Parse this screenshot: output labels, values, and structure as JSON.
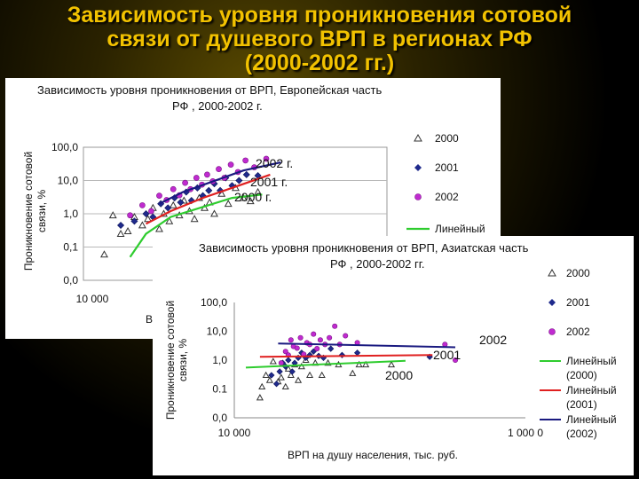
{
  "slide": {
    "title_lines": [
      "Зависимость уровня проникновения сотовой",
      "связи от душевого ВРП в регионах РФ",
      "(2000-2002 гг.)"
    ],
    "colors": {
      "title": "#f2c200",
      "background": "#000000"
    }
  },
  "chart_data": [
    {
      "type": "scatter",
      "title": "Зависимость уровня проникновения от ВРП, Европейская часть РФ , 2000-2002 г.",
      "title_lines": [
        "Зависимость уровня проникновения от ВРП, Европейская часть",
        "РФ , 2000-2002 г."
      ],
      "ylabel": "Проникновение сотовой связи, %",
      "ylabel_lines": [
        "Проникновение сотовой",
        "связи, %"
      ],
      "xlabel": "ВРП на душу населения, тыс. руб.",
      "xlabel_visible": "ВІ",
      "x_scale": "log",
      "y_scale": "log",
      "xlim": [
        10000,
        1000000
      ],
      "ylim": [
        0.01,
        100
      ],
      "x_tick_labels": [
        "10 000"
      ],
      "y_ticks": [
        0.01,
        0.1,
        1,
        10,
        100
      ],
      "y_tick_labels": [
        "0,0",
        "0,1",
        "1,0",
        "10,0",
        "100,0"
      ],
      "grid": true,
      "legend_placement": "right",
      "legend": [
        {
          "label": "2000",
          "marker": "triangle-open"
        },
        {
          "label": "2001",
          "marker": "diamond",
          "color": "#1f2a8c"
        },
        {
          "label": "2002",
          "marker": "circle",
          "color": "#c02ad0"
        },
        {
          "label": "Линейный",
          "marker": "line",
          "color": "#2ecc2e"
        }
      ],
      "annotations": [
        "2002 г.",
        "2001 г.",
        "2000 г."
      ],
      "series": [
        {
          "name": "2000",
          "points": [
            [
              13000,
              0.06
            ],
            [
              14500,
              0.9
            ],
            [
              16000,
              0.25
            ],
            [
              17500,
              0.3
            ],
            [
              19000,
              0.8
            ],
            [
              21000,
              0.45
            ],
            [
              22500,
              0.7
            ],
            [
              24000,
              1.5
            ],
            [
              26000,
              0.35
            ],
            [
              27500,
              1.0
            ],
            [
              29500,
              0.6
            ],
            [
              31000,
              1.8
            ],
            [
              33500,
              0.9
            ],
            [
              35500,
              2.5
            ],
            [
              38000,
              1.2
            ],
            [
              40500,
              0.7
            ],
            [
              43000,
              3.0
            ],
            [
              46000,
              1.5
            ],
            [
              49000,
              2.2
            ],
            [
              52000,
              1.0
            ],
            [
              57000,
              4.0
            ],
            [
              62000,
              2.0
            ],
            [
              68000,
              6.0
            ],
            [
              75000,
              3.0
            ],
            [
              82000,
              2.4
            ],
            [
              90000,
              4.5
            ]
          ]
        },
        {
          "name": "2001",
          "points": [
            [
              16000,
              0.45
            ],
            [
              19000,
              0.6
            ],
            [
              22000,
              1.0
            ],
            [
              24000,
              0.8
            ],
            [
              26500,
              2.0
            ],
            [
              29000,
              1.5
            ],
            [
              31500,
              3.0
            ],
            [
              34000,
              2.2
            ],
            [
              36500,
              4.5
            ],
            [
              39000,
              2.5
            ],
            [
              42000,
              6.0
            ],
            [
              45000,
              3.5
            ],
            [
              48500,
              5.0
            ],
            [
              52000,
              8.0
            ],
            [
              56000,
              5.0
            ],
            [
              60000,
              12.0
            ],
            [
              65000,
              7.0
            ],
            [
              71000,
              10.0
            ],
            [
              78000,
              15.0
            ],
            [
              90000,
              14.0
            ]
          ]
        },
        {
          "name": "2002",
          "points": [
            [
              18000,
              0.9
            ],
            [
              21000,
              1.8
            ],
            [
              23500,
              1.2
            ],
            [
              26000,
              3.5
            ],
            [
              28500,
              2.6
            ],
            [
              31000,
              5.5
            ],
            [
              33500,
              3.6
            ],
            [
              36000,
              8.5
            ],
            [
              38500,
              5.5
            ],
            [
              41500,
              12.0
            ],
            [
              44500,
              7.5
            ],
            [
              47500,
              15.0
            ],
            [
              51000,
              9.5
            ],
            [
              55000,
              22.0
            ],
            [
              59000,
              12.0
            ],
            [
              64000,
              30.0
            ],
            [
              70000,
              18.0
            ],
            [
              77000,
              40.0
            ],
            [
              86000,
              25.0
            ],
            [
              100000,
              45.0
            ]
          ]
        }
      ],
      "trendlines": [
        {
          "name": "2000",
          "color": "#2ecc2e",
          "points": [
            [
              18000,
              0.05
            ],
            [
              22000,
              0.25
            ],
            [
              30000,
              0.8
            ],
            [
              45000,
              1.6
            ],
            [
              65000,
              3.0
            ],
            [
              95000,
              3.8
            ]
          ]
        },
        {
          "name": "2001",
          "color": "#e02020",
          "points": [
            [
              22000,
              0.5
            ],
            [
              30000,
              1.2
            ],
            [
              45000,
              3.0
            ],
            [
              65000,
              6.0
            ],
            [
              105000,
              15.0
            ]
          ]
        },
        {
          "name": "2002",
          "color": "#1a1a80",
          "points": [
            [
              26000,
              2.0
            ],
            [
              35000,
              4.5
            ],
            [
              50000,
              9.0
            ],
            [
              75000,
              20.0
            ],
            [
              120000,
              35.0
            ]
          ]
        }
      ]
    },
    {
      "type": "scatter",
      "title": "Зависимость уровня проникновения от ВРП, Азиатская часть РФ , 2000-2002 гг.",
      "title_lines": [
        "Зависимость уровня проникновения от ВРП, Азиатская часть",
        "РФ , 2000-2002 гг."
      ],
      "ylabel": "Проникновение сотовой связи, %",
      "ylabel_lines": [
        "Проникновение сотовой",
        "связи, %"
      ],
      "xlabel": "ВРП на душу населения, тыс. руб.",
      "x_scale": "log",
      "y_scale": "log",
      "xlim": [
        10000,
        1000000
      ],
      "ylim": [
        0.01,
        100
      ],
      "x_ticks": [
        10000,
        1000000
      ],
      "x_tick_labels": [
        "10 000",
        "1 000 0"
      ],
      "y_ticks": [
        0.01,
        0.1,
        1,
        10,
        100
      ],
      "y_tick_labels": [
        "0,0",
        "0.1",
        "1,0",
        "10,0",
        "100,0"
      ],
      "grid": false,
      "legend_placement": "right",
      "legend": [
        {
          "label": "2000",
          "marker": "triangle-open"
        },
        {
          "label": "2001",
          "marker": "diamond",
          "color": "#1f2a8c"
        },
        {
          "label": "2002",
          "marker": "circle",
          "color": "#c02ad0"
        },
        {
          "label": "Линейный (2000)",
          "lines": [
            "Линейный",
            "(2000)"
          ],
          "marker": "line",
          "color": "#2ecc2e"
        },
        {
          "label": "Линейный (2001)",
          "lines": [
            "Линейный",
            "(2001)"
          ],
          "marker": "line",
          "color": "#e02020"
        },
        {
          "label": "Линейный (2002)",
          "lines": [
            "Линейный",
            "(2002)"
          ],
          "marker": "line",
          "color": "#1a1a80"
        }
      ],
      "annotations": [
        "2002",
        "2001",
        "2000"
      ],
      "series": [
        {
          "name": "2000",
          "points": [
            [
              15000,
              0.05
            ],
            [
              15500,
              0.12
            ],
            [
              16500,
              0.3
            ],
            [
              17500,
              0.2
            ],
            [
              18500,
              0.9
            ],
            [
              20000,
              0.18
            ],
            [
              21000,
              0.25
            ],
            [
              22500,
              0.12
            ],
            [
              23500,
              0.5
            ],
            [
              24500,
              0.3
            ],
            [
              26000,
              0.7
            ],
            [
              27500,
              0.2
            ],
            [
              29000,
              0.6
            ],
            [
              31000,
              1.0
            ],
            [
              33000,
              0.3
            ],
            [
              36000,
              0.8
            ],
            [
              40000,
              0.3
            ],
            [
              44000,
              0.8
            ],
            [
              52000,
              0.7
            ],
            [
              65000,
              0.35
            ],
            [
              72000,
              0.7
            ],
            [
              80000,
              0.7
            ],
            [
              120000,
              0.7
            ]
          ]
        },
        {
          "name": "2001",
          "points": [
            [
              18000,
              0.3
            ],
            [
              19500,
              0.15
            ],
            [
              20500,
              0.4
            ],
            [
              21500,
              0.8
            ],
            [
              22500,
              0.6
            ],
            [
              23500,
              1.0
            ],
            [
              25000,
              0.4
            ],
            [
              26000,
              0.8
            ],
            [
              27500,
              1.2
            ],
            [
              29000,
              1.8
            ],
            [
              31000,
              1.2
            ],
            [
              33000,
              1.5
            ],
            [
              35000,
              2.0
            ],
            [
              38000,
              1.4
            ],
            [
              41000,
              1.2
            ],
            [
              46000,
              2.5
            ],
            [
              55000,
              1.5
            ],
            [
              70000,
              1.8
            ],
            [
              220000,
              1.3
            ]
          ]
        },
        {
          "name": "2002",
          "points": [
            [
              21000,
              0.8
            ],
            [
              22500,
              2.0
            ],
            [
              23500,
              1.5
            ],
            [
              24500,
              5.0
            ],
            [
              25500,
              3.0
            ],
            [
              27000,
              2.6
            ],
            [
              28500,
              6.0
            ],
            [
              30000,
              1.6
            ],
            [
              31500,
              4.0
            ],
            [
              33000,
              3.5
            ],
            [
              35000,
              8.0
            ],
            [
              37000,
              2.5
            ],
            [
              39000,
              5.0
            ],
            [
              42000,
              3.5
            ],
            [
              45000,
              6.0
            ],
            [
              49000,
              15.0
            ],
            [
              53000,
              3.5
            ],
            [
              58000,
              7.0
            ],
            [
              70000,
              4.0
            ],
            [
              280000,
              3.5
            ],
            [
              330000,
              1.0
            ]
          ]
        }
      ],
      "trendlines": [
        {
          "name": "2000",
          "color": "#2ecc2e",
          "points": [
            [
              12000,
              0.55
            ],
            [
              150000,
              0.95
            ]
          ]
        },
        {
          "name": "2001",
          "color": "#e02020",
          "points": [
            [
              15000,
              1.3
            ],
            [
              230000,
              1.5
            ]
          ]
        },
        {
          "name": "2002",
          "color": "#1a1a80",
          "points": [
            [
              20000,
              3.8
            ],
            [
              330000,
              2.8
            ]
          ]
        }
      ]
    }
  ]
}
